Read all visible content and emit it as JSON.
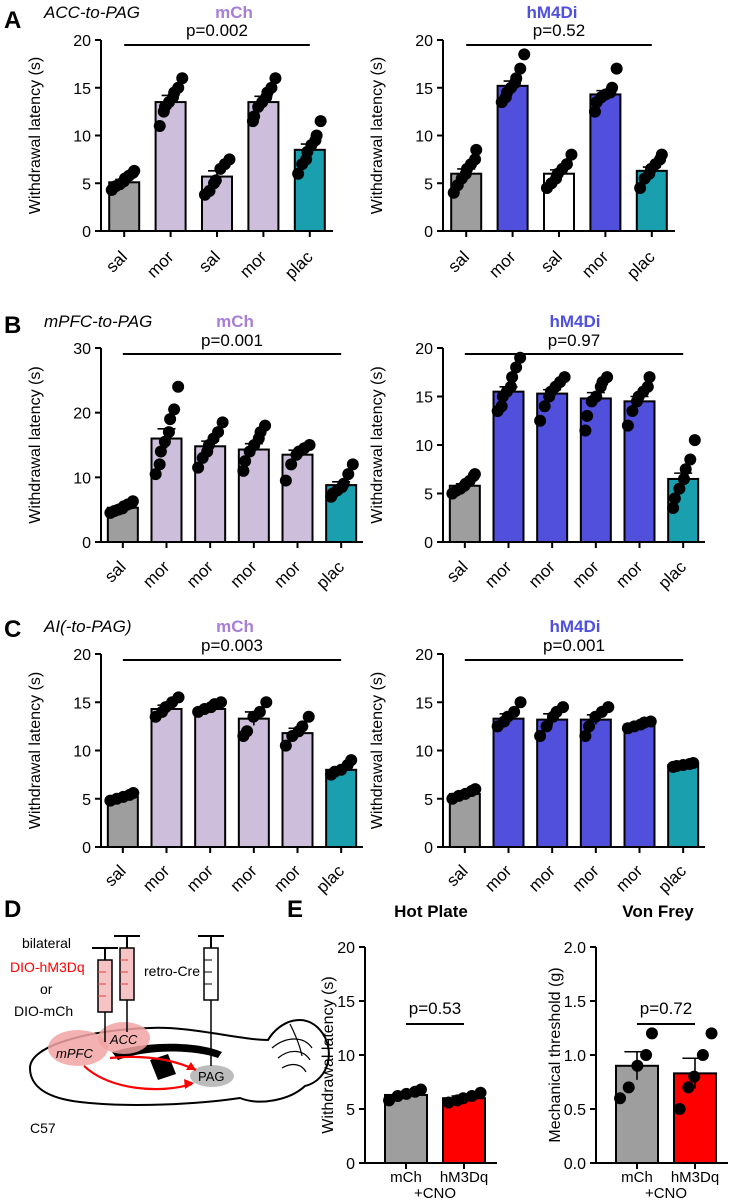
{
  "colors": {
    "sal": "#9e9e9e",
    "mch": "#cdbedb",
    "hm4di": "#5050dc",
    "plac": "#1a9fae",
    "white": "#ffffff",
    "red": "#ff0000",
    "mch_title": "#a77ed8",
    "hm4di_title": "#4f4fe0",
    "axis": "#000000"
  },
  "panels": [
    {
      "letter": "A",
      "region": "ACC-to-PAG"
    },
    {
      "letter": "B",
      "region": "mPFC-to-PAG"
    },
    {
      "letter": "C",
      "region": "AI(-to-PAG)"
    },
    {
      "letter": "D"
    },
    {
      "letter": "E"
    }
  ],
  "diagram": {
    "labels": [
      "bilateral",
      "DIO-hM3Dq",
      "or",
      "DIO-mCh",
      "retro-Cre",
      "mPFC",
      "ACC",
      "PAG",
      "C57"
    ]
  },
  "chart_data": [
    {
      "id": "A-mCh",
      "type": "bar",
      "title": "mCh",
      "title_color": "#a77ed8",
      "ylabel": "Withdrawal latency (s)",
      "ylim": [
        0,
        20
      ],
      "yticks": [
        0,
        5,
        10,
        15,
        20
      ],
      "categories": [
        "sal",
        "mor",
        "sal",
        "mor",
        "plac"
      ],
      "colors": [
        "#9e9e9e",
        "#cdbedb",
        "#cdbedb",
        "#cdbedb",
        "#1a9fae"
      ],
      "values": [
        5.1,
        13.5,
        5.7,
        13.5,
        8.5
      ],
      "sem": [
        0.3,
        0.7,
        0.6,
        0.6,
        0.6
      ],
      "points": [
        [
          4.3,
          4.7,
          4.9,
          5.2,
          5.5,
          5.8,
          6.1,
          6.3
        ],
        [
          11.0,
          12.5,
          13.0,
          13.5,
          14.0,
          14.5,
          15.0,
          16.0
        ],
        [
          3.8,
          4.2,
          5.0,
          5.3,
          6.5,
          7.0,
          7.5
        ],
        [
          11.5,
          12.0,
          13.0,
          13.5,
          14.0,
          14.5,
          15.0,
          16.0
        ],
        [
          6.0,
          7.0,
          7.5,
          8.3,
          9.0,
          9.5,
          10.0,
          11.5
        ]
      ],
      "stat": "p=0.002",
      "bracket": [
        0,
        4
      ]
    },
    {
      "id": "A-hM4Di",
      "type": "bar",
      "title": "hM4Di",
      "title_color": "#4f4fe0",
      "ylabel": "Withdrawal latency (s)",
      "ylim": [
        0,
        20
      ],
      "yticks": [
        0,
        5,
        10,
        15,
        20
      ],
      "categories": [
        "sal",
        "mor",
        "sal",
        "mor",
        "plac"
      ],
      "colors": [
        "#9e9e9e",
        "#5050dc",
        "#ffffff",
        "#5050dc",
        "#1a9fae"
      ],
      "values": [
        6.0,
        15.2,
        6.0,
        14.3,
        6.3
      ],
      "sem": [
        0.5,
        0.5,
        0.4,
        0.4,
        0.4
      ],
      "points": [
        [
          4.0,
          4.8,
          5.5,
          6.0,
          6.5,
          7.0,
          7.5,
          8.5
        ],
        [
          13.5,
          14.0,
          14.5,
          15.0,
          15.5,
          16.0,
          17.0,
          18.5
        ],
        [
          4.5,
          5.0,
          5.5,
          6.0,
          6.5,
          7.0,
          8.0
        ],
        [
          12.5,
          13.5,
          14.0,
          14.3,
          14.5,
          15.0,
          17.0
        ],
        [
          4.5,
          5.5,
          6.0,
          6.5,
          7.0,
          7.5,
          8.0
        ]
      ],
      "stat": "p=0.52",
      "bracket": [
        0,
        4
      ]
    },
    {
      "id": "B-mCh",
      "type": "bar",
      "title": "mCh",
      "title_color": "#a77ed8",
      "ylabel": "Withdrawal latency (s)",
      "ylim": [
        0,
        30
      ],
      "yticks": [
        0,
        10,
        20,
        30
      ],
      "categories": [
        "sal",
        "mor",
        "mor",
        "mor",
        "mor",
        "plac"
      ],
      "colors": [
        "#9e9e9e",
        "#cdbedb",
        "#cdbedb",
        "#cdbedb",
        "#cdbedb",
        "#cdbedb"
      ],
      "last_color": "#1a9fae",
      "values": [
        5.3,
        16.0,
        14.8,
        14.3,
        13.5,
        8.8
      ],
      "sem": [
        0.3,
        1.5,
        0.8,
        0.9,
        0.7,
        0.5
      ],
      "points": [
        [
          4.5,
          4.8,
          5.0,
          5.2,
          5.5,
          5.8,
          6.0,
          6.3
        ],
        [
          10.5,
          12.0,
          14.0,
          15.5,
          17.0,
          19.0,
          20.5,
          24.0
        ],
        [
          11.5,
          13.0,
          14.0,
          15.0,
          16.0,
          17.0,
          18.5
        ],
        [
          11.0,
          12.5,
          14.0,
          15.0,
          16.0,
          17.0,
          18.0
        ],
        [
          9.5,
          12.0,
          13.5,
          14.0,
          14.5,
          15.0
        ],
        [
          7.0,
          7.5,
          8.0,
          8.5,
          9.0,
          10.5,
          12.0
        ]
      ],
      "stat": "p=0.001",
      "bracket": [
        0,
        5
      ]
    },
    {
      "id": "B-hM4Di",
      "type": "bar",
      "title": "hM4Di",
      "title_color": "#4f4fe0",
      "ylabel": "Withdrawal latency (s)",
      "ylim": [
        0,
        20
      ],
      "yticks": [
        0,
        5,
        10,
        15,
        20
      ],
      "categories": [
        "sal",
        "mor",
        "mor",
        "mor",
        "mor",
        "plac"
      ],
      "colors": [
        "#9e9e9e",
        "#5050dc",
        "#5050dc",
        "#5050dc",
        "#5050dc",
        "#1a9fae"
      ],
      "values": [
        5.8,
        15.5,
        15.3,
        14.8,
        14.5,
        6.5
      ],
      "sem": [
        0.2,
        0.5,
        0.4,
        0.6,
        0.5,
        0.6
      ],
      "points": [
        [
          5.0,
          5.3,
          5.5,
          5.8,
          6.0,
          6.3,
          6.8,
          7.0
        ],
        [
          13.5,
          14.0,
          15.0,
          15.5,
          16.0,
          17.0,
          18.0,
          19.0
        ],
        [
          12.5,
          14.0,
          15.0,
          15.5,
          16.0,
          16.5,
          17.0
        ],
        [
          11.5,
          13.0,
          14.5,
          15.0,
          16.0,
          16.5,
          17.0
        ],
        [
          12.0,
          13.5,
          14.5,
          15.0,
          15.5,
          16.0,
          17.0
        ],
        [
          3.5,
          4.5,
          5.5,
          6.5,
          7.5,
          8.5,
          10.5
        ]
      ],
      "stat": "p=0.97",
      "bracket": [
        0,
        5
      ]
    },
    {
      "id": "C-mCh",
      "type": "bar",
      "title": "mCh",
      "title_color": "#a77ed8",
      "ylabel": "Withdrawal latency (s)",
      "ylim": [
        0,
        20
      ],
      "yticks": [
        0,
        5,
        10,
        15,
        20
      ],
      "categories": [
        "sal",
        "mor",
        "mor",
        "mor",
        "mor",
        "plac"
      ],
      "colors": [
        "#9e9e9e",
        "#cdbedb",
        "#cdbedb",
        "#cdbedb",
        "#cdbedb",
        "#1a9fae"
      ],
      "values": [
        5.2,
        14.3,
        14.3,
        13.3,
        11.8,
        8.0
      ],
      "sem": [
        0.2,
        0.4,
        0.3,
        0.7,
        0.5,
        0.3
      ],
      "points": [
        [
          4.8,
          5.0,
          5.2,
          5.4,
          5.6
        ],
        [
          13.5,
          14.0,
          14.5,
          15.0,
          15.5
        ],
        [
          14.0,
          14.3,
          14.5,
          14.8,
          15.0
        ],
        [
          11.5,
          12.0,
          13.5,
          14.0,
          15.0
        ],
        [
          10.5,
          11.5,
          12.0,
          12.5,
          13.5
        ],
        [
          7.5,
          7.8,
          8.0,
          8.5,
          9.0
        ]
      ],
      "stat": "p=0.003",
      "bracket": [
        0,
        5
      ]
    },
    {
      "id": "C-hM4Di",
      "type": "bar",
      "title": "hM4Di",
      "title_color": "#4f4fe0",
      "ylabel": "Withdrawal latency (s)",
      "ylim": [
        0,
        20
      ],
      "yticks": [
        0,
        5,
        10,
        15,
        20
      ],
      "categories": [
        "sal",
        "mor",
        "mor",
        "mor",
        "mor",
        "plac"
      ],
      "colors": [
        "#9e9e9e",
        "#5050dc",
        "#5050dc",
        "#5050dc",
        "#5050dc",
        "#1a9fae"
      ],
      "values": [
        5.5,
        13.3,
        13.2,
        13.2,
        12.7,
        8.5
      ],
      "sem": [
        0.2,
        0.5,
        0.6,
        0.5,
        0.2,
        0.1
      ],
      "points": [
        [
          5.0,
          5.3,
          5.5,
          5.8,
          6.0
        ],
        [
          12.5,
          13.0,
          13.5,
          14.0,
          15.0
        ],
        [
          11.5,
          12.5,
          13.5,
          14.0,
          14.5
        ],
        [
          11.5,
          12.5,
          13.5,
          14.0,
          14.5
        ],
        [
          12.3,
          12.5,
          12.7,
          12.9,
          13.0
        ],
        [
          8.3,
          8.4,
          8.5,
          8.6,
          8.7
        ]
      ],
      "stat": "p=0.001",
      "bracket": [
        0,
        5
      ]
    },
    {
      "id": "E-hot",
      "type": "bar",
      "title": "Hot Plate",
      "title_color": "#000000",
      "ylabel": "Withdrawal latency (s)",
      "ylim": [
        0,
        20
      ],
      "yticks": [
        0,
        5,
        10,
        15,
        20
      ],
      "ytick_labels": [
        "0",
        "5",
        "10",
        "15",
        "20"
      ],
      "categories": [
        "mCh",
        "hM3Dq"
      ],
      "sublabel": "+CNO",
      "colors": [
        "#9e9e9e",
        "#ff0000"
      ],
      "values": [
        6.3,
        6.0
      ],
      "sem": [
        0.2,
        0.2
      ],
      "points": [
        [
          5.8,
          6.2,
          6.4,
          6.6,
          6.8
        ],
        [
          5.6,
          5.8,
          6.0,
          6.2,
          6.5
        ]
      ],
      "stat": "p=0.53",
      "bracket": [
        0,
        1
      ]
    },
    {
      "id": "E-vonfrey",
      "type": "bar",
      "title": "Von Frey",
      "title_color": "#000000",
      "ylabel": "Mechanical threshold (g)",
      "ylim": [
        0,
        2
      ],
      "yticks": [
        0,
        0.5,
        1,
        1.5,
        2
      ],
      "ytick_labels": [
        "0.0",
        "0.5",
        "1.0",
        "1.5",
        "2.0"
      ],
      "categories": [
        "mCh",
        "hM3Dq"
      ],
      "sublabel": "+CNO",
      "colors": [
        "#9e9e9e",
        "#ff0000"
      ],
      "values": [
        0.9,
        0.83
      ],
      "sem": [
        0.13,
        0.14
      ],
      "points": [
        [
          0.6,
          0.7,
          0.9,
          1.0,
          1.2
        ],
        [
          0.5,
          0.7,
          0.8,
          1.0,
          1.2
        ]
      ],
      "stat": "p=0.72",
      "bracket": [
        0,
        1
      ]
    }
  ]
}
